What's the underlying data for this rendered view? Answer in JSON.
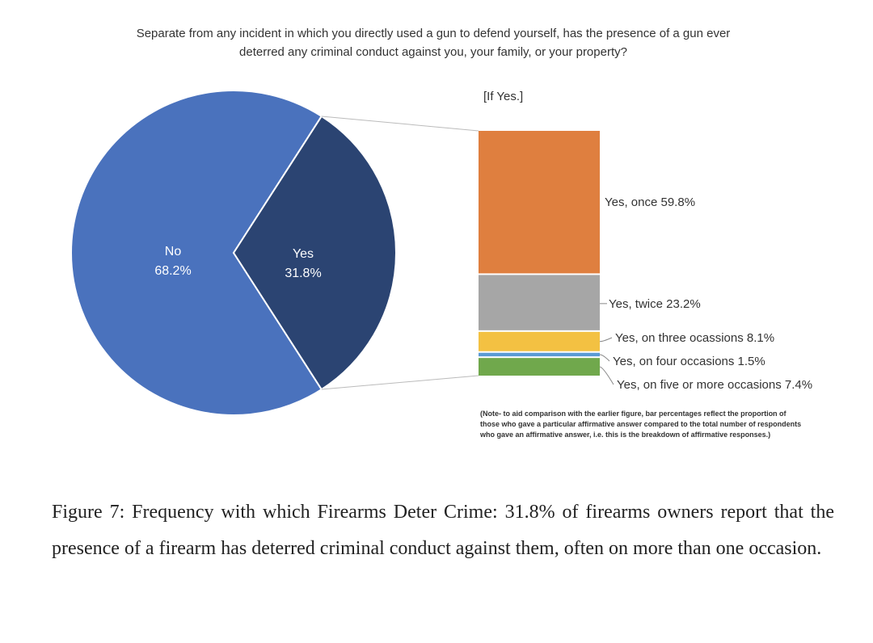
{
  "chart_data": {
    "type": "pie",
    "title": "Separate from any incident in which you directly used a gun to defend yourself, has the presence of a gun ever deterred any criminal conduct against you, your family, or your property?",
    "title_lines": [
      "Separate from any incident in which you directly used a gun to defend yourself, has the presence of a gun ever",
      "deterred any criminal conduct against you, your family, or your property?"
    ],
    "pie": {
      "slices": [
        {
          "label": "No",
          "value": 68.2,
          "value_label": "68.2%",
          "color": "#4a72bd"
        },
        {
          "label": "Yes",
          "value": 31.8,
          "value_label": "31.8%",
          "color": "#2b4472"
        }
      ]
    },
    "breakdown": {
      "type": "stacked-bar",
      "subtitle": "[If Yes.]",
      "segments": [
        {
          "label": "Yes, once 59.8%",
          "value": 59.8,
          "color": "#df7f3f"
        },
        {
          "label": "Yes, twice 23.2%",
          "value": 23.2,
          "color": "#a6a6a6"
        },
        {
          "label": "Yes, on three ocassions 8.1%",
          "value": 8.1,
          "color": "#f3c142"
        },
        {
          "label": "Yes, on four occasions 1.5%",
          "value": 1.5,
          "color": "#5b9bd5"
        },
        {
          "label": "Yes, on five or more occasions 7.4%",
          "value": 7.4,
          "color": "#70a84c"
        }
      ],
      "note_lines": [
        "(Note- to aid comparison with the earlier figure, bar percentages reflect the proportion of",
        "those who gave a particular affirmative answer compared to the total number of respondents",
        "who gave an affirmative answer, i.e. this is the breakdown of affirmative responses.)"
      ]
    }
  },
  "caption": "Figure 7: Frequency with which Firearms Deter Crime: 31.8% of firearms owners report that the presence of a firearm has deterred criminal conduct against them, often on more than one occasion."
}
